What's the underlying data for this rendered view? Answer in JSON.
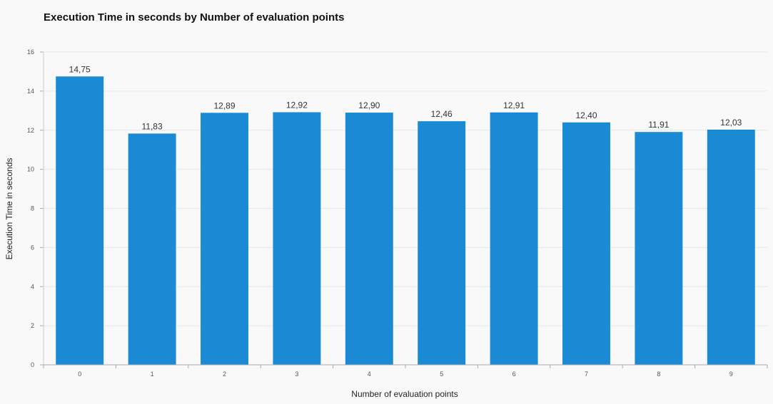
{
  "chart_data": {
    "type": "bar",
    "title": "Execution Time in seconds by Number of evaluation points",
    "xlabel": "Number of evaluation points",
    "ylabel": "Execution Time in seconds",
    "categories": [
      "0",
      "1",
      "2",
      "3",
      "4",
      "5",
      "6",
      "7",
      "8",
      "9"
    ],
    "values": [
      14.75,
      11.83,
      12.89,
      12.92,
      12.9,
      12.46,
      12.91,
      12.4,
      11.91,
      12.03
    ],
    "value_labels": [
      "14,75",
      "11,83",
      "12,89",
      "12,92",
      "12,90",
      "12,46",
      "12,91",
      "12,40",
      "11,91",
      "12,03"
    ],
    "ylim": [
      0,
      16
    ],
    "yticks": [
      0,
      2,
      4,
      6,
      8,
      10,
      12,
      14,
      16
    ],
    "grid": true,
    "legend": "none",
    "bar_color": "#1a8ad4"
  }
}
